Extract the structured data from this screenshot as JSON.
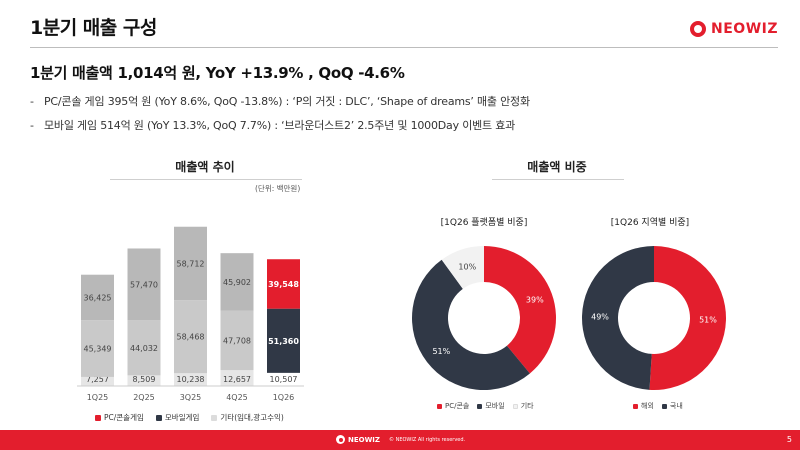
{
  "header": {
    "title": "1분기 매출 구성",
    "logo_text": "NEOWIZ"
  },
  "summary": {
    "headline": "1분기 매출액 1,014억 원, YoY +13.9% , QoQ -4.6%",
    "bullets": [
      {
        "dash": "-",
        "text": "PC/콘솔 게임  395억 원 (YoY 8.6%, QoQ -13.8%) : ‘P의 거짓 : DLC’, ‘Shape of dreams’ 매출 안정화"
      },
      {
        "dash": "-",
        "text": "모바일 게임 514억 원 (YoY 13.3%, QoQ 7.7%) : ‘브라운더스트2’ 2.5주년 및 1000Day 이벤트 효과"
      }
    ]
  },
  "bar_section": {
    "title": "매출액 추이",
    "unit": "(단위: 백만원)",
    "legend": [
      {
        "label": "PC/콘솔게임",
        "color": "#e31e2d"
      },
      {
        "label": "모바일게임",
        "color": "#303846"
      },
      {
        "label": "기타(임대,광고수익)",
        "color": "#dcdcdc"
      }
    ]
  },
  "share_section": {
    "title": "매출액 비중",
    "platform_title": "[1Q26 플랫폼별 비중]",
    "region_title": "[1Q26 지역별 비중]",
    "platform_legend": [
      {
        "label": "PC/콘솔",
        "color": "#e31e2d"
      },
      {
        "label": "모바일",
        "color": "#303846"
      },
      {
        "label": "기타",
        "color": "#f2f2f2"
      }
    ],
    "region_legend": [
      {
        "label": "해외",
        "color": "#e31e2d"
      },
      {
        "label": "국내",
        "color": "#303846"
      }
    ]
  },
  "chart_data": [
    {
      "type": "bar",
      "stacked": true,
      "title": "매출액 추이",
      "categories": [
        "1Q25",
        "2Q25",
        "3Q25",
        "4Q25",
        "1Q26"
      ],
      "series": [
        {
          "name": "기타(임대,광고수익)",
          "values": [
            7257,
            8509,
            10238,
            12657,
            10507
          ],
          "labels": [
            "7,257",
            "8,509",
            "10,238",
            "12,657",
            "10,507"
          ]
        },
        {
          "name": "모바일게임",
          "values": [
            45349,
            44032,
            58468,
            47708,
            51360
          ],
          "labels": [
            "45,349",
            "44,032",
            "58,468",
            "47,708",
            "51,360"
          ]
        },
        {
          "name": "PC/콘솔게임",
          "values": [
            36425,
            57470,
            58712,
            45902,
            39548
          ],
          "labels": [
            "36,425",
            "57,470",
            "58,712",
            "45,902",
            "39,548"
          ]
        }
      ],
      "colors_past": [
        "#e6e6e6",
        "#c9c9c9",
        "#b8b8b8"
      ],
      "colors_current": [
        "#ffffff",
        "#303846",
        "#e31e2d"
      ]
    },
    {
      "type": "pie",
      "title": "[1Q26 플랫폼별 비중]",
      "labels": [
        "PC/콘솔",
        "모바일",
        "기타"
      ],
      "values": [
        39,
        51,
        10
      ],
      "value_labels": [
        "39%",
        "51%",
        "10%"
      ],
      "colors": [
        "#e31e2d",
        "#303846",
        "#f2f2f2"
      ]
    },
    {
      "type": "pie",
      "title": "[1Q26 지역별 비중]",
      "labels": [
        "해외",
        "국내"
      ],
      "values": [
        51,
        49
      ],
      "value_labels": [
        "51%",
        "49%"
      ],
      "colors": [
        "#e31e2d",
        "#303846"
      ]
    }
  ],
  "footer": {
    "logo_text": "NEOWIZ",
    "copyright": "© NEOWIZ All rights reserved.",
    "page": "5"
  }
}
